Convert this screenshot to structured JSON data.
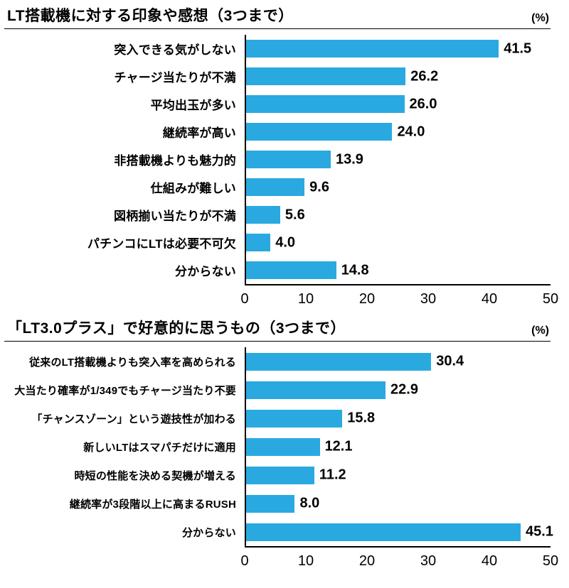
{
  "page": {
    "background": "#ffffff",
    "bar_color": "#29a9e0",
    "axis_color": "#000000",
    "text_color": "#000000"
  },
  "chart_data": [
    {
      "type": "bar",
      "orientation": "horizontal",
      "title": "LT搭載機に対する印象や感想（3つまで）",
      "unit_label": "(%)",
      "categories": [
        "突入できる気がしない",
        "チャージ当たりが不満",
        "平均出玉が多い",
        "継続率が高い",
        "非搭載機よりも魅力的",
        "仕組みが難しい",
        "図柄揃い当たりが不満",
        "パチンコにLTは必要不可欠",
        "分からない"
      ],
      "values": [
        41.5,
        26.2,
        26.0,
        24.0,
        13.9,
        9.6,
        5.6,
        4.0,
        14.8
      ],
      "value_labels": [
        "41.5",
        "26.2",
        "26.0",
        "24.0",
        "13.9",
        "9.6",
        "5.6",
        "4.0",
        "14.8"
      ],
      "xlabel": "",
      "ylabel": "",
      "xlim": [
        0,
        50
      ],
      "xticks": [
        "0",
        "10",
        "20",
        "30",
        "40",
        "50"
      ],
      "grid": false,
      "legend": false
    },
    {
      "type": "bar",
      "orientation": "horizontal",
      "title": "「LT3.0プラス」で好意的に思うもの（3つまで）",
      "unit_label": "(%)",
      "categories": [
        "従来のLT搭載機よりも突入率を高められる",
        "大当たり確率が1/349でもチャージ当たり不要",
        "「チャンスゾーン」という遊技性が加わる",
        "新しいLTはスマパチだけに適用",
        "時短の性能を決める契機が増える",
        "継続率が3段階以上に高まるRUSH",
        "分からない"
      ],
      "values": [
        30.4,
        22.9,
        15.8,
        12.1,
        11.2,
        8.0,
        45.1
      ],
      "value_labels": [
        "30.4",
        "22.9",
        "15.8",
        "12.1",
        "11.2",
        "8.0",
        "45.1"
      ],
      "xlabel": "",
      "ylabel": "",
      "xlim": [
        0,
        50
      ],
      "xticks": [
        "0",
        "10",
        "20",
        "30",
        "40",
        "50"
      ],
      "grid": false,
      "legend": false
    }
  ]
}
